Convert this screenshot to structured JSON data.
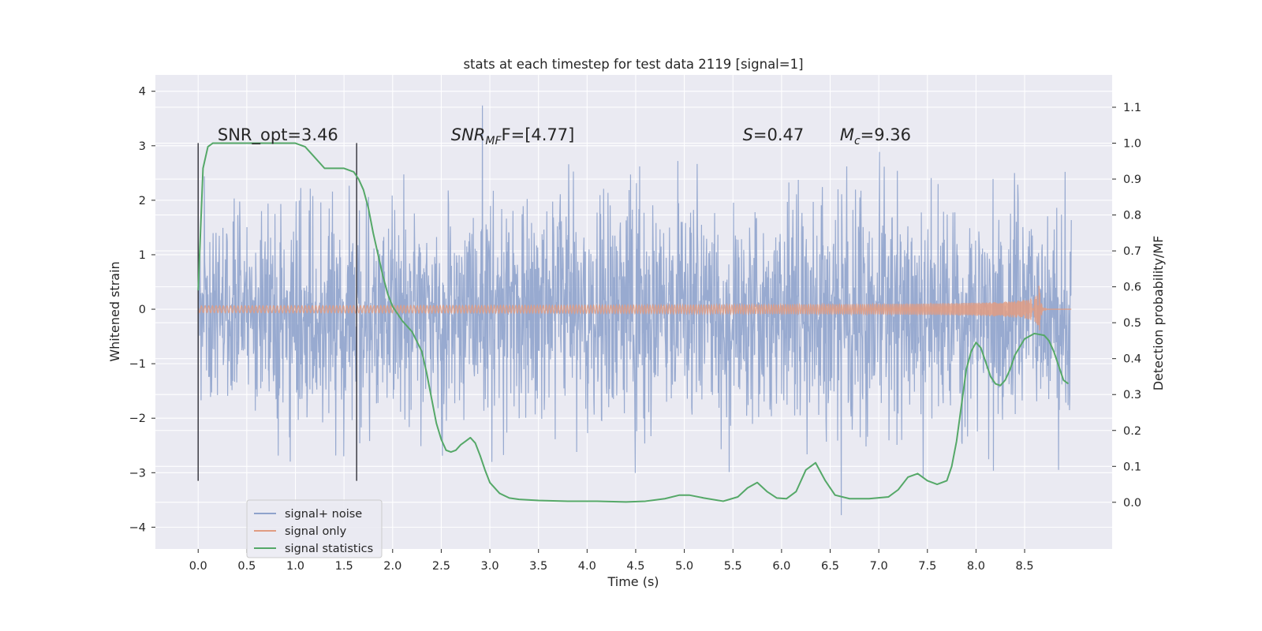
{
  "chart_data": {
    "type": "line",
    "title": "stats at each timestep for test data 2119 [signal=1]",
    "xlabel": "Time (s)",
    "ylabel": "Whitened strain",
    "ylabel_right": "Detection probability/MF",
    "xlim": [
      -0.44,
      9.4
    ],
    "ylim": [
      -4.4,
      4.3
    ],
    "ylim_right": [
      -0.13,
      1.19
    ],
    "x_ticks": [
      "0.0",
      "0.5",
      "1.0",
      "1.5",
      "2.0",
      "2.5",
      "3.0",
      "3.5",
      "4.0",
      "4.5",
      "5.0",
      "5.5",
      "6.0",
      "6.5",
      "7.0",
      "7.5",
      "8.0",
      "8.5"
    ],
    "y_ticks": [
      "−4",
      "−3",
      "−2",
      "−1",
      "0",
      "1",
      "2",
      "3",
      "4"
    ],
    "y_ticks_right": [
      "0.0",
      "0.1",
      "0.2",
      "0.3",
      "0.4",
      "0.5",
      "0.6",
      "0.7",
      "0.8",
      "0.9",
      "1.0",
      "1.1"
    ],
    "grid": true,
    "legend_placement": "lower-left",
    "background_color": "#eaeaf2",
    "annotations": [
      {
        "text": "SNR_opt=3.46",
        "x": 0.2,
        "y": 3.1
      },
      {
        "text": "SNR_{MF}=[4.77]",
        "parts": [
          "SNR",
          "MF",
          "F=[4.77]"
        ],
        "x": 2.6,
        "y": 3.1
      },
      {
        "text": "S=0.47",
        "parts": [
          "S",
          "=0.47"
        ],
        "x": 5.6,
        "y": 3.1
      },
      {
        "text": "M_c=9.36",
        "parts": [
          "M",
          "c",
          "=9.36"
        ],
        "x": 6.6,
        "y": 3.1
      }
    ],
    "vertical_lines": [
      {
        "x": 0.0,
        "y_range": [
          -3.15,
          3.05
        ]
      },
      {
        "x": 1.63,
        "y_range": [
          -3.15,
          3.05
        ]
      }
    ],
    "series": [
      {
        "name": "signal+ noise",
        "color": "#8fa3cc",
        "axis": "left",
        "x_range": [
          0.0,
          8.98
        ],
        "sample_rate_display": 2400,
        "sigma": 1.0,
        "min": -4.05,
        "max": 3.95
      },
      {
        "name": "signal only",
        "color": "#e09c82",
        "axis": "left",
        "x_range": [
          0.0,
          8.98
        ],
        "merger_time": 8.65,
        "peak_amplitude": 0.48
      },
      {
        "name": "signal statistics",
        "color": "#55a868",
        "axis": "right",
        "x": [
          0.0,
          0.05,
          0.1,
          0.15,
          0.2,
          0.3,
          0.4,
          0.5,
          0.6,
          0.7,
          0.8,
          0.9,
          1.0,
          1.1,
          1.2,
          1.3,
          1.4,
          1.5,
          1.6,
          1.65,
          1.7,
          1.75,
          1.8,
          1.85,
          1.9,
          1.95,
          2.0,
          2.1,
          2.2,
          2.3,
          2.35,
          2.4,
          2.45,
          2.5,
          2.55,
          2.6,
          2.65,
          2.7,
          2.75,
          2.8,
          2.85,
          2.9,
          2.95,
          3.0,
          3.1,
          3.2,
          3.3,
          3.5,
          3.8,
          4.1,
          4.4,
          4.6,
          4.8,
          4.95,
          5.05,
          5.2,
          5.4,
          5.55,
          5.65,
          5.75,
          5.85,
          5.95,
          6.05,
          6.15,
          6.25,
          6.35,
          6.45,
          6.55,
          6.7,
          6.9,
          7.1,
          7.2,
          7.3,
          7.4,
          7.5,
          7.6,
          7.7,
          7.75,
          7.8,
          7.85,
          7.9,
          7.95,
          8.0,
          8.05,
          8.1,
          8.15,
          8.2,
          8.25,
          8.3,
          8.35,
          8.4,
          8.5,
          8.6,
          8.7,
          8.75,
          8.8,
          8.85,
          8.9,
          8.95
        ],
        "values": [
          0.59,
          0.93,
          0.99,
          1.0,
          1.0,
          1.0,
          1.0,
          1.0,
          1.0,
          1.0,
          1.0,
          1.0,
          1.0,
          0.99,
          0.96,
          0.93,
          0.93,
          0.93,
          0.92,
          0.9,
          0.87,
          0.82,
          0.75,
          0.69,
          0.63,
          0.58,
          0.545,
          0.505,
          0.475,
          0.42,
          0.36,
          0.29,
          0.22,
          0.175,
          0.145,
          0.14,
          0.145,
          0.16,
          0.17,
          0.18,
          0.165,
          0.13,
          0.09,
          0.055,
          0.025,
          0.012,
          0.008,
          0.005,
          0.003,
          0.003,
          0.001,
          0.003,
          0.01,
          0.02,
          0.02,
          0.012,
          0.003,
          0.015,
          0.04,
          0.055,
          0.03,
          0.012,
          0.01,
          0.03,
          0.09,
          0.11,
          0.06,
          0.02,
          0.01,
          0.01,
          0.015,
          0.035,
          0.07,
          0.08,
          0.06,
          0.05,
          0.06,
          0.1,
          0.17,
          0.27,
          0.37,
          0.42,
          0.445,
          0.43,
          0.39,
          0.35,
          0.33,
          0.325,
          0.34,
          0.37,
          0.41,
          0.455,
          0.47,
          0.465,
          0.45,
          0.42,
          0.38,
          0.34,
          0.33
        ]
      }
    ]
  }
}
